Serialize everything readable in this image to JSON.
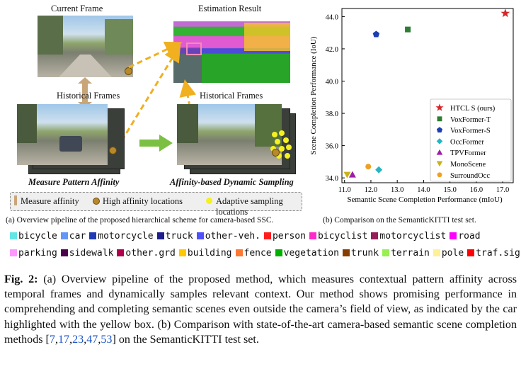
{
  "panel_a": {
    "current_frame_label": "Current Frame",
    "estimation_label": "Estimation Result",
    "historical_left_label": "Historical Frames",
    "historical_right_label": "Historical Frames",
    "measure_label": "Measure Pattern Affinity",
    "sampling_label": "Affinity-based Dynamic Sampling",
    "legend": {
      "measure": "Measure affinity",
      "high": "High affinity locations",
      "adaptive": "Adaptive sampling locations"
    },
    "caption": "(a) Overview pipeline of the proposed hierarchical scheme for camera-based SSC."
  },
  "panel_b": {
    "caption": "(b) Comparison on the SemanticKITTI test set."
  },
  "chart_data": {
    "type": "scatter",
    "xlabel": "Semantic Scene Completion Performance (mIoU)",
    "ylabel": "Scene Completion Performance (IoU)",
    "xlim": [
      10.9,
      17.4
    ],
    "ylim": [
      33.7,
      44.5
    ],
    "xticks": [
      "11.0",
      "12.0",
      "13.0",
      "14.0",
      "15.0",
      "16.0",
      "17.0"
    ],
    "yticks": [
      "34.0",
      "36.0",
      "38.0",
      "40.0",
      "42.0",
      "44.0"
    ],
    "legend_position": "lower-right",
    "series": [
      {
        "name": "HTCL S (ours)",
        "x": 17.1,
        "y": 44.2,
        "marker": "star",
        "color": "#d62728"
      },
      {
        "name": "VoxFormer-T",
        "x": 13.4,
        "y": 43.2,
        "marker": "square",
        "color": "#2e7d32"
      },
      {
        "name": "VoxFormer-S",
        "x": 12.2,
        "y": 42.9,
        "marker": "pentagon",
        "color": "#1a3fb3"
      },
      {
        "name": "OccFormer",
        "x": 12.3,
        "y": 34.5,
        "marker": "diamond",
        "color": "#26b5c2"
      },
      {
        "name": "TPVFormer",
        "x": 11.3,
        "y": 34.2,
        "marker": "triangle-up",
        "color": "#9c1fa8"
      },
      {
        "name": "MonoScene",
        "x": 11.1,
        "y": 34.2,
        "marker": "triangle-down",
        "color": "#c9b21a"
      },
      {
        "name": "SurroundOcc",
        "x": 11.9,
        "y": 34.7,
        "marker": "circle",
        "color": "#f0a020"
      }
    ]
  },
  "class_legend": [
    [
      {
        "label": "bicycle",
        "color": "#64e6e6"
      },
      {
        "label": "car",
        "color": "#6496f5"
      },
      {
        "label": "motorcycle",
        "color": "#1e3cb4"
      },
      {
        "label": "truck",
        "color": "#1e1e8c"
      },
      {
        "label": "other-veh.",
        "color": "#5050ff"
      },
      {
        "label": "person",
        "color": "#ff1e1e"
      },
      {
        "label": "bicyclist",
        "color": "#ff28c8"
      },
      {
        "label": "motorcyclist",
        "color": "#961e5a"
      },
      {
        "label": "road",
        "color": "#ff00ff"
      }
    ],
    [
      {
        "label": "parking",
        "color": "#ff96ff"
      },
      {
        "label": "sidewalk",
        "color": "#4b004b"
      },
      {
        "label": "other.grd",
        "color": "#af004b"
      },
      {
        "label": "building",
        "color": "#ffc800"
      },
      {
        "label": "fence",
        "color": "#ff7832"
      },
      {
        "label": "vegetation",
        "color": "#00af00"
      },
      {
        "label": "trunk",
        "color": "#873c00"
      },
      {
        "label": "terrain",
        "color": "#96f050"
      },
      {
        "label": "pole",
        "color": "#fff096"
      },
      {
        "label": "traf.sign",
        "color": "#ff0000"
      }
    ]
  ],
  "figure_caption": {
    "label": "Fig. 2:",
    "part1": " (a) Overview pipeline of the proposed method, which measures contextual pattern affinity across temporal frames and dynamically samples relevant context. Our method shows promising performance in comprehending and completing semantic scenes even outside the camera’s field of view, as indicated by the car highlighted with the yellow box. (b) Comparison with state-of-the-art camera-based semantic scene completion methods [",
    "refs": [
      "7",
      "17",
      "23",
      "47",
      "53"
    ],
    "part2": "] on the SemanticKITTI test set."
  }
}
